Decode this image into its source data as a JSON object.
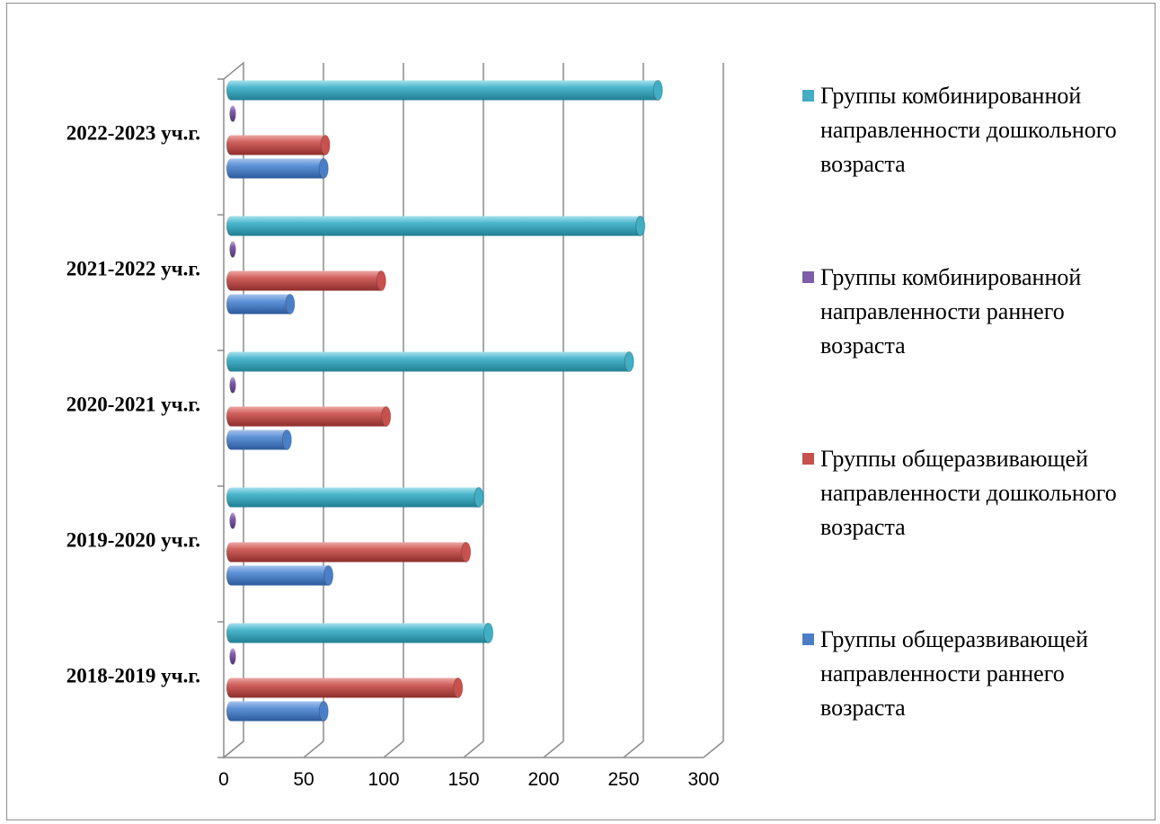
{
  "chart_data": {
    "type": "bar",
    "orientation": "horizontal",
    "style": "3d-cylinder",
    "categories": [
      "2018-2019 уч.г.",
      "2019-2020 уч.г.",
      "2020-2021 уч.г.",
      "2021-2022 уч.г.",
      "2022-2023 уч.г."
    ],
    "xticks": [
      "0",
      "50",
      "100",
      "150",
      "200",
      "250",
      "300"
    ],
    "xlim": [
      0,
      300
    ],
    "grid": true,
    "legend_position": "right",
    "series": [
      {
        "name": "Группы общеразвивающей направленности раннего возраста",
        "color": "#4a7fc8",
        "values": [
          58,
          61,
          35,
          37,
          58
        ]
      },
      {
        "name": "Группы общеразвивающей направленности дошкольного возраста",
        "color": "#c8504d",
        "values": [
          142,
          147,
          97,
          94,
          59
        ]
      },
      {
        "name": "Группы комбинированной направленности раннего возраста",
        "color": "#7e5ea6",
        "values": [
          1,
          1,
          1,
          1,
          1
        ]
      },
      {
        "name": "Группы комбинированной направленности дошкольного возраста",
        "color": "#41aec4",
        "values": [
          161,
          155,
          249,
          256,
          267
        ]
      }
    ],
    "legend_order": [
      3,
      2,
      1,
      0
    ]
  }
}
